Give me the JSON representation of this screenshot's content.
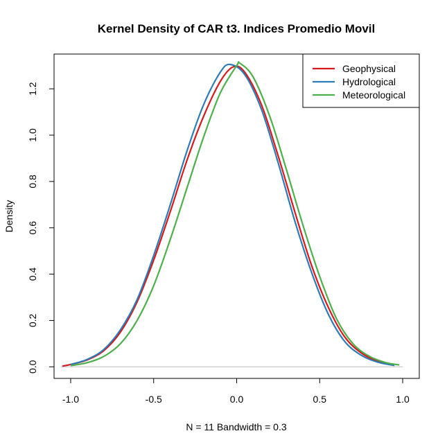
{
  "chart_data": {
    "type": "line",
    "title": "Kernel Density of CAR t3. Indices Promedio Movil",
    "xlabel": "N = 11   Bandwidth = 0.3",
    "ylabel": "Density",
    "xlim": [
      -1.1,
      1.1
    ],
    "ylim": [
      -0.05,
      1.35
    ],
    "x_ticks": [
      -1.0,
      -0.5,
      0.0,
      0.5,
      1.0
    ],
    "x_tick_labels": [
      "-1.0",
      "-0.5",
      "0.0",
      "0.5",
      "1.0"
    ],
    "y_ticks": [
      0.0,
      0.2,
      0.4,
      0.6,
      0.8,
      1.0,
      1.2
    ],
    "y_tick_labels": [
      "0.0",
      "0.2",
      "0.4",
      "0.6",
      "0.8",
      "1.0",
      "1.2"
    ],
    "baseline_color": "#bebebe",
    "legend_position": "top-right",
    "series": [
      {
        "name": "Geophysical",
        "color": "#d7191c",
        "x": [
          -1.05,
          -1.0,
          -0.9,
          -0.8,
          -0.7,
          -0.6,
          -0.5,
          -0.4,
          -0.3,
          -0.2,
          -0.1,
          -0.02,
          0.05,
          0.15,
          0.25,
          0.35,
          0.45,
          0.55,
          0.65,
          0.75,
          0.85,
          0.95
        ],
        "y": [
          0.003,
          0.01,
          0.03,
          0.07,
          0.15,
          0.28,
          0.46,
          0.67,
          0.89,
          1.08,
          1.23,
          1.295,
          1.27,
          1.13,
          0.91,
          0.67,
          0.44,
          0.26,
          0.13,
          0.06,
          0.025,
          0.008
        ]
      },
      {
        "name": "Hydrological",
        "color": "#2c7bb6",
        "x": [
          -1.0,
          -0.9,
          -0.8,
          -0.7,
          -0.6,
          -0.5,
          -0.4,
          -0.3,
          -0.2,
          -0.1,
          -0.04,
          0.05,
          0.15,
          0.25,
          0.35,
          0.45,
          0.55,
          0.65,
          0.75,
          0.85,
          0.95
        ],
        "y": [
          0.01,
          0.032,
          0.075,
          0.16,
          0.29,
          0.48,
          0.7,
          0.93,
          1.13,
          1.27,
          1.305,
          1.26,
          1.11,
          0.88,
          0.63,
          0.41,
          0.23,
          0.11,
          0.05,
          0.02,
          0.006
        ]
      },
      {
        "name": "Meteorological",
        "color": "#4daf4a",
        "x": [
          -1.0,
          -0.9,
          -0.8,
          -0.7,
          -0.6,
          -0.5,
          -0.4,
          -0.3,
          -0.2,
          -0.1,
          0.0,
          0.02,
          0.1,
          0.2,
          0.3,
          0.4,
          0.5,
          0.6,
          0.7,
          0.8,
          0.9,
          0.98
        ],
        "y": [
          0.005,
          0.018,
          0.045,
          0.1,
          0.2,
          0.35,
          0.55,
          0.77,
          0.99,
          1.18,
          1.3,
          1.31,
          1.25,
          1.08,
          0.85,
          0.61,
          0.39,
          0.21,
          0.1,
          0.045,
          0.018,
          0.008
        ]
      }
    ]
  }
}
